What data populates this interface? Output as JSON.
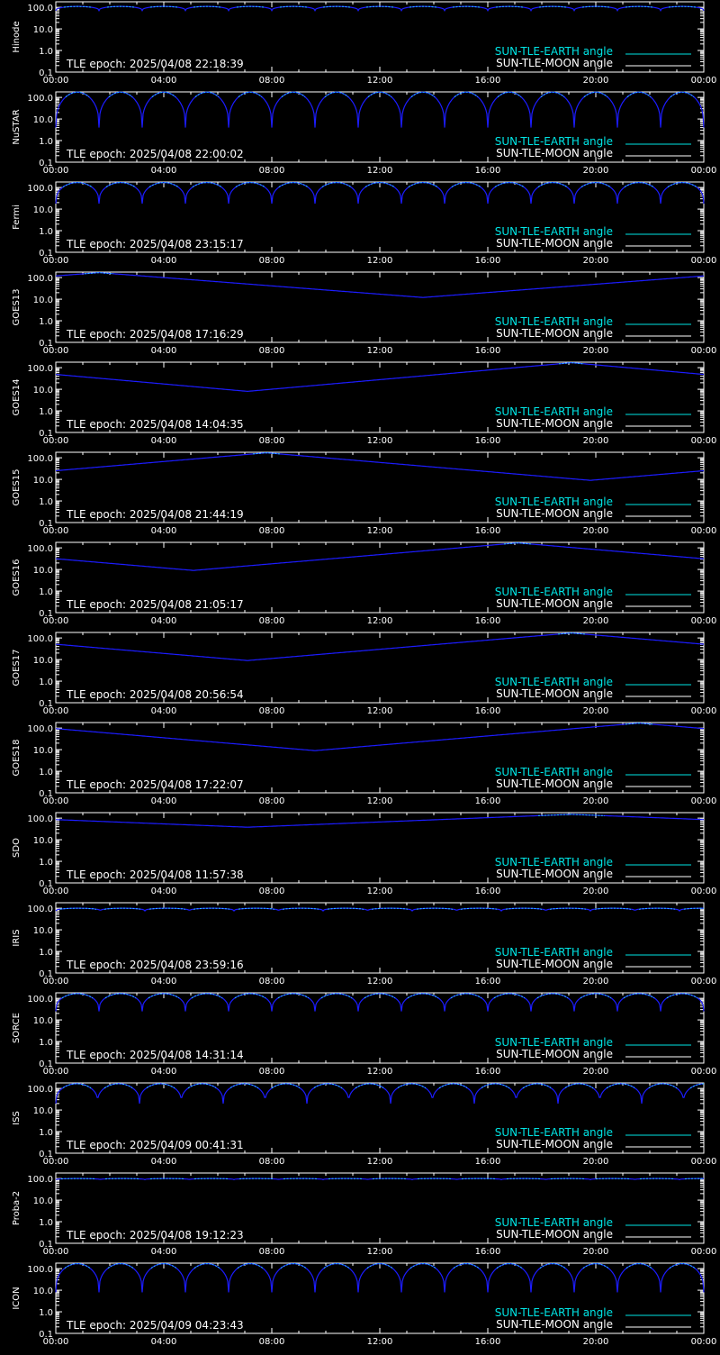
{
  "colors": {
    "background": "#000000",
    "axis": "#ffffff",
    "earth_curve": "#1c1cff",
    "earth_highlight": "#28c8ff",
    "legend_earth": "#00e5e5",
    "legend_moon": "#ffffff"
  },
  "x_axis": {
    "ticks": [
      "00:00",
      "04:00",
      "08:00",
      "12:00",
      "16:00",
      "20:00",
      "00:00"
    ]
  },
  "y_axis": {
    "scale": "log",
    "ticks": [
      "0.1",
      "1.0",
      "10.0",
      "100.0"
    ],
    "ylim": [
      0.1,
      180
    ]
  },
  "legend": {
    "earth_label": "SUN-TLE-EARTH angle",
    "moon_label": "SUN-TLE-MOON angle",
    "placement": "bottom-right"
  },
  "chart_data": [
    {
      "type": "line",
      "ylabel": "Hinode",
      "epoch_label": "TLE epoch: 2025/04/08 22:18:39",
      "pattern": "orbital",
      "period_hours": 1.6,
      "min_angle": 70,
      "max_angle": 110,
      "high_threshold": 100
    },
    {
      "type": "line",
      "ylabel": "NuSTAR",
      "epoch_label": "TLE epoch: 2025/04/08 22:00:02",
      "pattern": "orbital",
      "period_hours": 1.6,
      "min_angle": 4,
      "max_angle": 175,
      "high_threshold": 100
    },
    {
      "type": "line",
      "ylabel": "Fermi",
      "epoch_label": "TLE epoch: 2025/04/08 23:15:17",
      "pattern": "orbital",
      "period_hours": 1.6,
      "min_angle": 18,
      "max_angle": 170,
      "high_threshold": 100
    },
    {
      "type": "line",
      "ylabel": "GOES13",
      "epoch_label": "TLE epoch: 2025/04/08 17:16:29",
      "pattern": "daily",
      "min_hour": 13.6,
      "min_angle": 12,
      "max_angle": 170,
      "high_threshold": 150
    },
    {
      "type": "line",
      "ylabel": "GOES14",
      "epoch_label": "TLE epoch: 2025/04/08 14:04:35",
      "pattern": "daily",
      "min_hour": 7.1,
      "min_angle": 8,
      "max_angle": 170,
      "high_threshold": 150
    },
    {
      "type": "line",
      "ylabel": "GOES15",
      "epoch_label": "TLE epoch: 2025/04/08 21:44:19",
      "pattern": "daily",
      "min_hour": 19.8,
      "min_angle": 9,
      "max_angle": 170,
      "high_threshold": 150
    },
    {
      "type": "line",
      "ylabel": "GOES16",
      "epoch_label": "TLE epoch: 2025/04/08 21:05:17",
      "pattern": "daily",
      "min_hour": 5.1,
      "min_angle": 9,
      "max_angle": 170,
      "high_threshold": 150
    },
    {
      "type": "line",
      "ylabel": "GOES17",
      "epoch_label": "TLE epoch: 2025/04/08 20:56:54",
      "pattern": "daily",
      "min_hour": 7.1,
      "min_angle": 9,
      "max_angle": 170,
      "high_threshold": 150
    },
    {
      "type": "line",
      "ylabel": "GOES18",
      "epoch_label": "TLE epoch: 2025/04/08 17:22:07",
      "pattern": "daily",
      "min_hour": 9.6,
      "min_angle": 9,
      "max_angle": 170,
      "high_threshold": 150
    },
    {
      "type": "line",
      "ylabel": "SDO",
      "epoch_label": "TLE epoch: 2025/04/08 11:57:38",
      "pattern": "daily",
      "min_hour": 7.1,
      "min_angle": 38,
      "max_angle": 150,
      "high_threshold": 130
    },
    {
      "type": "line",
      "ylabel": "IRIS",
      "epoch_label": "TLE epoch: 2025/04/08 23:59:16",
      "pattern": "orbital",
      "period_hours": 1.65,
      "min_angle": 75,
      "max_angle": 100,
      "high_threshold": 90
    },
    {
      "type": "line",
      "ylabel": "SORCE",
      "epoch_label": "TLE epoch: 2025/04/08 14:31:14",
      "pattern": "orbital",
      "period_hours": 1.6,
      "min_angle": 25,
      "max_angle": 165,
      "high_threshold": 100
    },
    {
      "type": "line",
      "ylabel": "ISS",
      "epoch_label": "TLE epoch: 2025/04/09 00:41:31",
      "pattern": "orbital",
      "period_hours": 1.55,
      "min_angle": 20,
      "max_angle": 165,
      "high_threshold": 100
    },
    {
      "type": "line",
      "ylabel": "Proba-2",
      "epoch_label": "TLE epoch: 2025/04/08 19:12:23",
      "pattern": "orbital",
      "period_hours": 1.65,
      "min_angle": 88,
      "max_angle": 100,
      "high_threshold": 96
    },
    {
      "type": "line",
      "ylabel": "ICON",
      "epoch_label": "TLE epoch: 2025/04/09 04:23:43",
      "pattern": "orbital",
      "period_hours": 1.6,
      "min_angle": 8,
      "max_angle": 170,
      "high_threshold": 100
    }
  ]
}
